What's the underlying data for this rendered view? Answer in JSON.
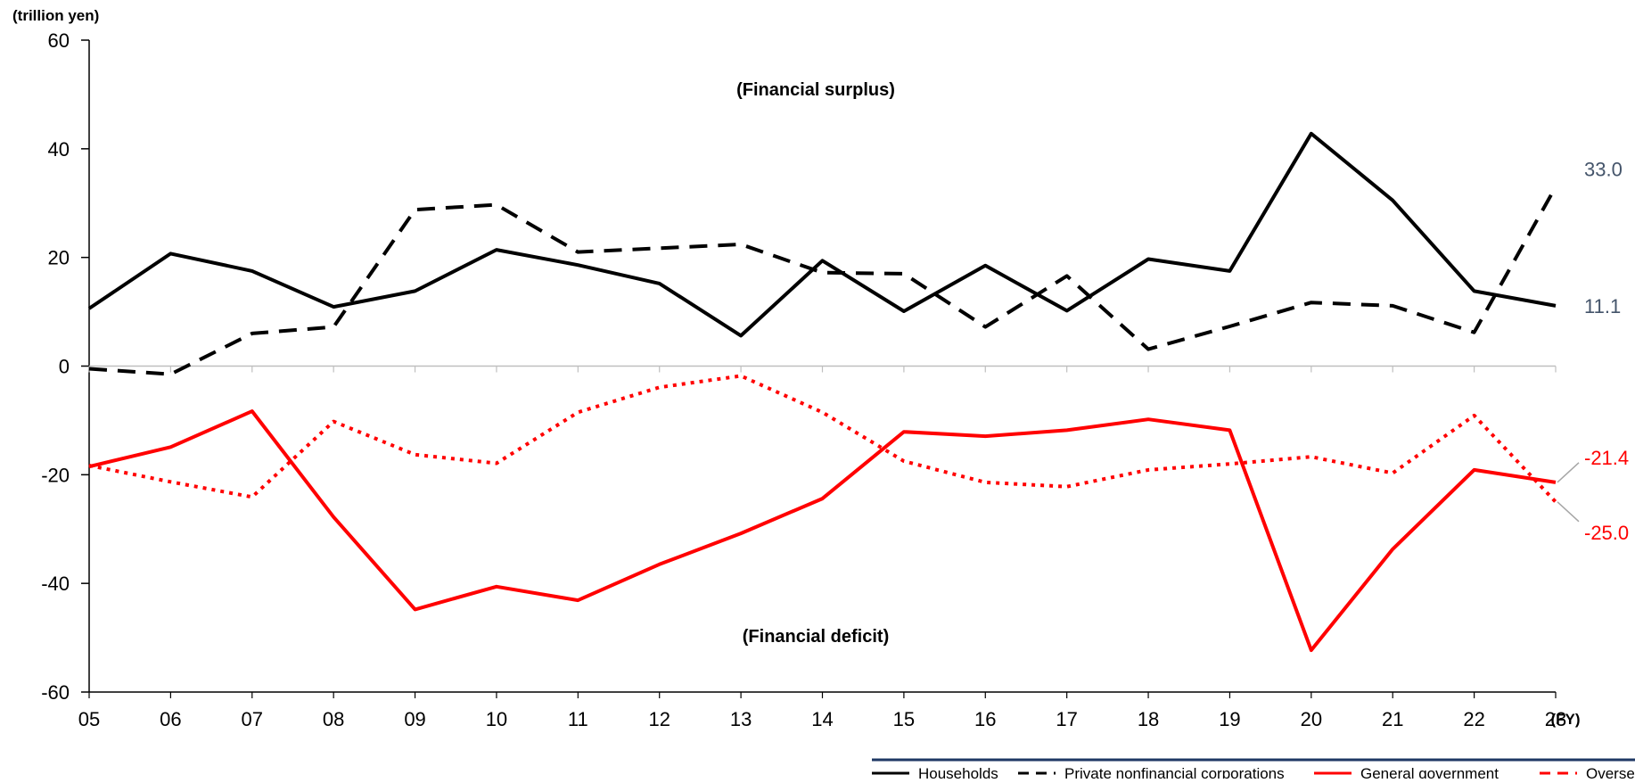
{
  "chart_data": {
    "type": "line",
    "unit_label": "(trillion yen)",
    "x_unit_label": "(FY)",
    "x": [
      "05",
      "06",
      "07",
      "08",
      "09",
      "10",
      "11",
      "12",
      "13",
      "14",
      "15",
      "16",
      "17",
      "18",
      "19",
      "20",
      "21",
      "22",
      "23"
    ],
    "ylim": [
      -60,
      60
    ],
    "yticks": [
      60,
      40,
      20,
      0,
      -20,
      -40,
      -60
    ],
    "grid": false,
    "legend_position": "bottom-right",
    "annotations": {
      "surplus": "(Financial surplus)",
      "deficit": "(Financial deficit)"
    },
    "series": [
      {
        "name": "Households",
        "color": "#000000",
        "dash": "solid",
        "values": [
          10.6,
          20.7,
          17.5,
          10.9,
          13.8,
          21.4,
          18.6,
          15.2,
          5.6,
          19.4,
          10.1,
          18.5,
          10.2,
          19.7,
          17.5,
          42.8,
          30.5,
          13.8,
          11.1
        ],
        "end_label": "11.1",
        "end_label_color": "#44546A"
      },
      {
        "name": "Private nonfinancial corporations",
        "color": "#000000",
        "dash": "dashed",
        "values": [
          -0.5,
          -1.5,
          6.0,
          7.2,
          28.8,
          29.7,
          21.0,
          21.7,
          22.4,
          17.2,
          17.0,
          7.2,
          16.6,
          3.1,
          7.3,
          11.7,
          11.1,
          6.2,
          33.0
        ],
        "end_label": "33.0",
        "end_label_color": "#44546A"
      },
      {
        "name": "General government",
        "color": "#FF0000",
        "dash": "solid",
        "values": [
          -18.5,
          -14.9,
          -8.3,
          -27.8,
          -44.8,
          -40.6,
          -43.1,
          -36.5,
          -30.8,
          -24.4,
          -12.1,
          -12.9,
          -11.8,
          -9.8,
          -11.8,
          -52.3,
          -33.7,
          -19.1,
          -21.4
        ],
        "end_label": "-21.4",
        "end_label_color": "#FF0000"
      },
      {
        "name": "Overseas",
        "color": "#FF0000",
        "dash": "dotted",
        "values": [
          -18.3,
          -21.3,
          -24.1,
          -10.2,
          -16.3,
          -17.9,
          -8.5,
          -3.9,
          -1.8,
          -8.5,
          -17.5,
          -21.4,
          -22.2,
          -19.1,
          -18.0,
          -16.7,
          -19.7,
          -9.1,
          -25.0
        ],
        "end_label": "-25.0",
        "end_label_color": "#FF0000"
      }
    ]
  }
}
